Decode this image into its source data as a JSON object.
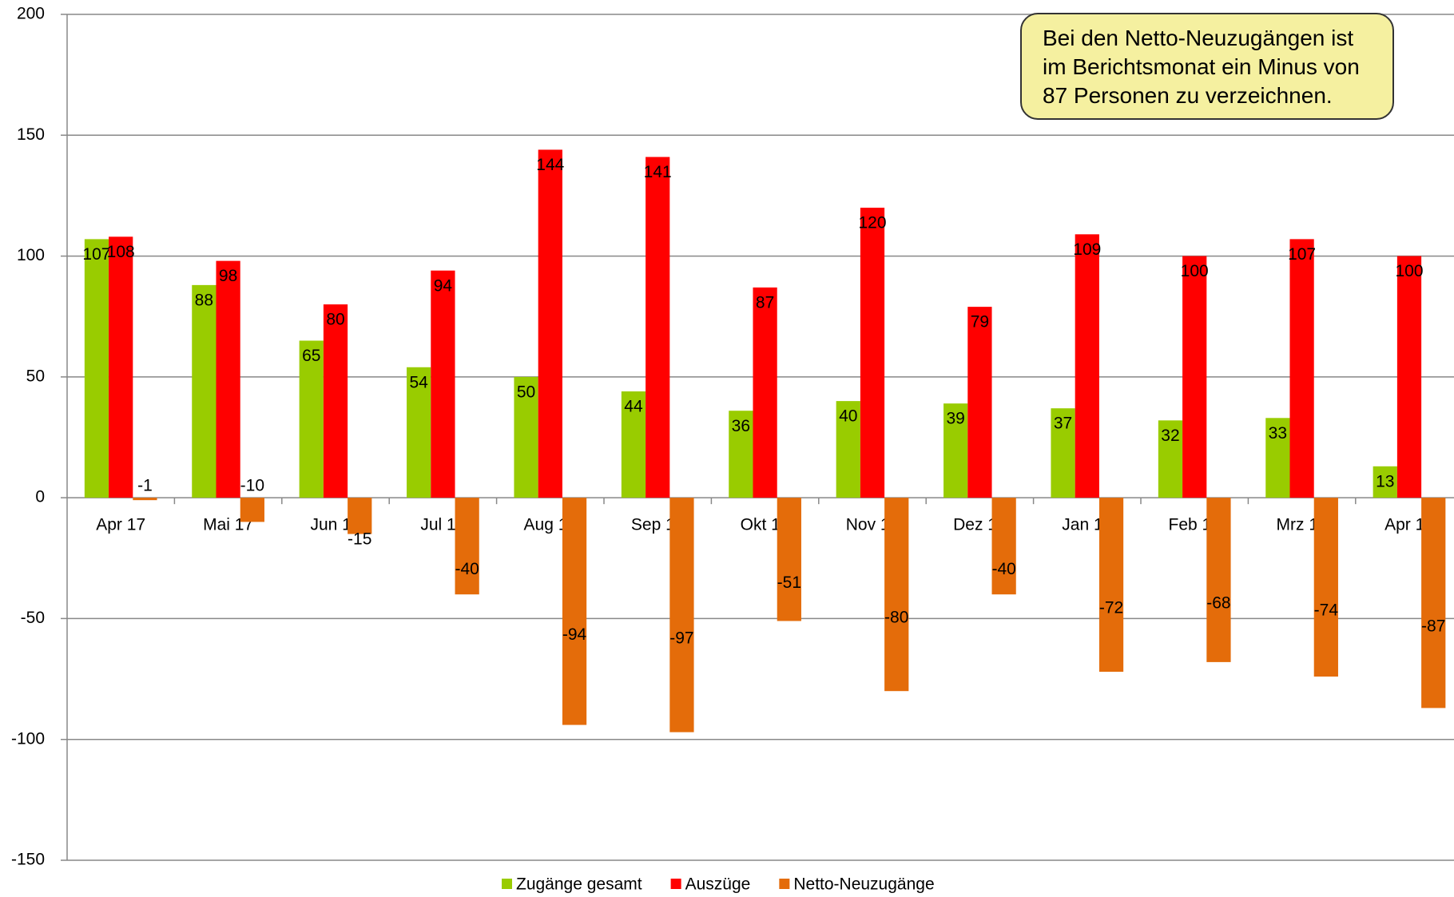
{
  "chart_data": {
    "type": "bar",
    "annotation": "Bei den Netto-Neuzugängen ist im Berichtsmonat ein Minus von 87 Personen zu verzeichnen.",
    "categories": [
      "Apr 17",
      "Mai 17",
      "Jun 17",
      "Jul 17",
      "Aug 17",
      "Sep 17",
      "Okt 17",
      "Nov 17",
      "Dez 17",
      "Jan 18",
      "Feb 18",
      "Mrz 18",
      "Apr 18"
    ],
    "series": [
      {
        "name": "Zugänge gesamt",
        "color": "#99cc00",
        "values": [
          107,
          88,
          65,
          54,
          50,
          44,
          36,
          40,
          39,
          37,
          32,
          33,
          13
        ]
      },
      {
        "name": "Auszüge",
        "color": "#ff0000",
        "values": [
          108,
          98,
          80,
          94,
          144,
          141,
          87,
          120,
          79,
          109,
          100,
          107,
          100
        ]
      },
      {
        "name": "Netto-Neuzugänge",
        "color": "#e46c0a",
        "values": [
          -1,
          -10,
          -15,
          -40,
          -94,
          -97,
          -51,
          -80,
          -40,
          -72,
          -68,
          -74,
          -87
        ]
      }
    ],
    "ylim": [
      -150,
      200
    ],
    "yticks": [
      -150,
      -100,
      -50,
      0,
      50,
      100,
      150,
      200
    ],
    "grid": true
  }
}
